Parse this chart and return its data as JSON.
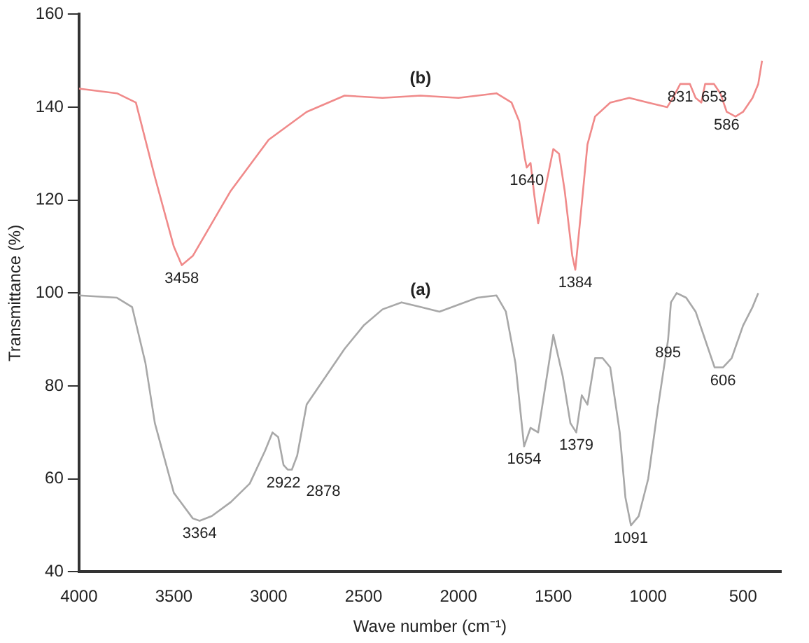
{
  "chart_data": {
    "type": "line",
    "xlabel": "Wave number (cm⁻¹)",
    "ylabel": "Transmittance (%)",
    "xlim": [
      4000,
      300
    ],
    "xticks": [
      4000,
      3500,
      3000,
      2500,
      2000,
      1500,
      1000,
      500
    ],
    "ylim": [
      40,
      160
    ],
    "yticks": [
      40,
      60,
      80,
      100,
      120,
      140,
      160
    ],
    "grid": false,
    "legend": false,
    "marker": "none",
    "line_style": "solid",
    "series": [
      {
        "name": "(a)",
        "color": "#a8a8a8",
        "x": [
          4000,
          3800,
          3720,
          3650,
          3600,
          3500,
          3400,
          3364,
          3300,
          3200,
          3100,
          3020,
          2980,
          2950,
          2922,
          2900,
          2878,
          2850,
          2800,
          2700,
          2600,
          2500,
          2400,
          2300,
          2200,
          2100,
          2000,
          1900,
          1800,
          1750,
          1700,
          1654,
          1620,
          1580,
          1500,
          1450,
          1410,
          1379,
          1350,
          1320,
          1280,
          1240,
          1200,
          1150,
          1120,
          1091,
          1050,
          1000,
          950,
          895,
          880,
          850,
          800,
          750,
          700,
          650,
          606,
          560,
          500,
          450,
          420
        ],
        "values": [
          99.5,
          99,
          97,
          85,
          72,
          57,
          51.5,
          51,
          52,
          55,
          59,
          66,
          70,
          69,
          63,
          62,
          62,
          65,
          76,
          82,
          88,
          93,
          96.5,
          98,
          97,
          96,
          97.5,
          99,
          99.5,
          96,
          85,
          67,
          71,
          70,
          91,
          82,
          72,
          70,
          78,
          76,
          86,
          86,
          84,
          70,
          56,
          50,
          52,
          60,
          75,
          90,
          98,
          100,
          99,
          96,
          90,
          84,
          84,
          86,
          93,
          97,
          100
        ]
      },
      {
        "name": "(b)",
        "color": "#f08a8a",
        "x": [
          4000,
          3800,
          3700,
          3600,
          3500,
          3458,
          3400,
          3300,
          3200,
          3000,
          2800,
          2600,
          2400,
          2200,
          2000,
          1800,
          1720,
          1680,
          1650,
          1640,
          1620,
          1600,
          1580,
          1540,
          1500,
          1470,
          1440,
          1400,
          1384,
          1360,
          1320,
          1280,
          1200,
          1100,
          1000,
          900,
          870,
          831,
          780,
          750,
          720,
          700,
          653,
          620,
          586,
          540,
          500,
          450,
          420,
          400
        ],
        "values": [
          144,
          143,
          141,
          125,
          110,
          106,
          108,
          115,
          122,
          133,
          139,
          142.5,
          142,
          142.5,
          142,
          143,
          141,
          137,
          129,
          127,
          128,
          121,
          115,
          123,
          131,
          130,
          122,
          108,
          105,
          115,
          132,
          138,
          141,
          142,
          141,
          140,
          142,
          145,
          145,
          142,
          141,
          145,
          145,
          143,
          139,
          138,
          139,
          142,
          145,
          150
        ]
      }
    ],
    "annotations": [
      {
        "text": "3458",
        "x": 3458,
        "y": 106
      },
      {
        "text": "1640",
        "x": 1640,
        "y": 127
      },
      {
        "text": "1384",
        "x": 1384,
        "y": 105
      },
      {
        "text": "831",
        "x": 831,
        "y": 145
      },
      {
        "text": "653",
        "x": 653,
        "y": 145
      },
      {
        "text": "586",
        "x": 586,
        "y": 139
      },
      {
        "text": "3364",
        "x": 3364,
        "y": 51
      },
      {
        "text": "2922",
        "x": 2922,
        "y": 62
      },
      {
        "text": "2878",
        "x": 2878,
        "y": 62
      },
      {
        "text": "1654",
        "x": 1654,
        "y": 67
      },
      {
        "text": "1379",
        "x": 1379,
        "y": 70
      },
      {
        "text": "1091",
        "x": 1091,
        "y": 50
      },
      {
        "text": "895",
        "x": 895,
        "y": 90
      },
      {
        "text": "606",
        "x": 606,
        "y": 84
      }
    ]
  }
}
